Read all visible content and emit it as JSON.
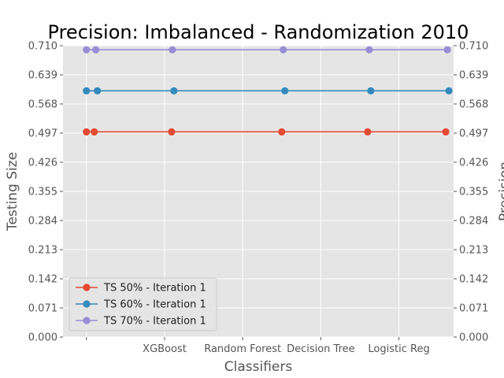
{
  "chart_data": {
    "type": "line",
    "title": "Precision: Imbalanced - Randomization 2010",
    "xlabel": "Classifiers",
    "ylabel": "Testing Size",
    "ylabel_right": "Precision",
    "categories": [
      "",
      "XGBoost",
      "Random Forest",
      "Decision Tree",
      "Logistic Reg"
    ],
    "xlim": [
      -0.3,
      4.7
    ],
    "ylim": [
      0,
      0.71
    ],
    "yticks": [
      "0.000",
      "0.071",
      "0.142",
      "0.213",
      "0.284",
      "0.355",
      "0.426",
      "0.497",
      "0.568",
      "0.639",
      "0.710"
    ],
    "grid": true,
    "legend_position": "lower-left",
    "series": [
      {
        "name": "TS 50% - Iteration 1",
        "color": "#E24A33",
        "x": [
          0,
          0.1,
          1.09,
          2.5,
          3.6,
          4.6
        ],
        "values": [
          0.5,
          0.5,
          0.5,
          0.5,
          0.5,
          0.5
        ]
      },
      {
        "name": "TS 60% - Iteration 1",
        "color": "#348ABD",
        "x": [
          0,
          0.14,
          1.12,
          2.54,
          3.64,
          4.64
        ],
        "values": [
          0.6,
          0.6,
          0.6,
          0.6,
          0.6,
          0.6
        ]
      },
      {
        "name": "TS 70% - Iteration 1",
        "color": "#988ED5",
        "x": [
          0,
          0.12,
          1.1,
          2.52,
          3.62,
          4.62
        ],
        "values": [
          0.7,
          0.7,
          0.7,
          0.7,
          0.7,
          0.7
        ]
      }
    ]
  }
}
